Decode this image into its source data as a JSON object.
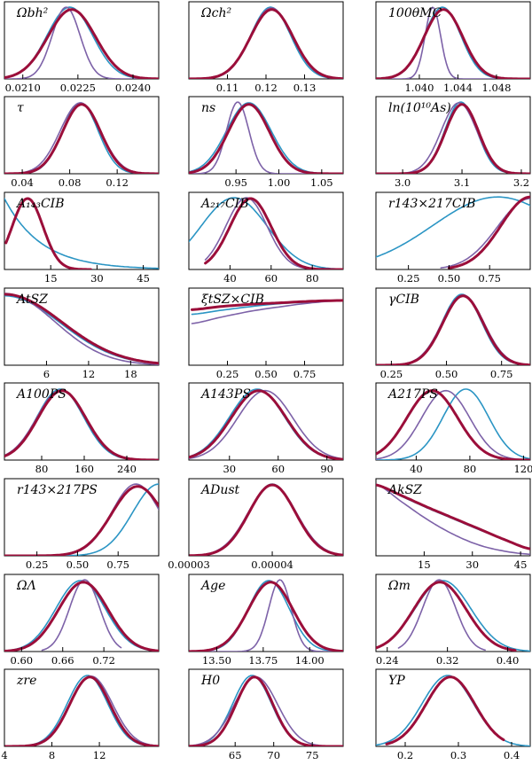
{
  "figure": "posterior-grid",
  "colors": {
    "thick": "#9b0e3a",
    "cyan": "#2b95c4",
    "purple": "#7d62a8"
  },
  "series_names": [
    "thick",
    "cyan",
    "purple"
  ],
  "chart_data": [
    {
      "type": "line",
      "title": "Ωbh²",
      "xlim": [
        0.0205,
        0.0247
      ],
      "ticks": [
        0.021,
        0.0225,
        0.024
      ],
      "tick_labels": [
        "0.0210",
        "0.0225",
        "0.0240"
      ],
      "series": [
        {
          "name": "thick",
          "kind": "gauss",
          "mu": 0.02233,
          "sigma": 0.00065,
          "peak": 0.9
        },
        {
          "name": "cyan",
          "kind": "gauss",
          "mu": 0.02228,
          "sigma": 0.00062,
          "peak": 0.93
        },
        {
          "name": "purple",
          "kind": "gauss",
          "mu": 0.02218,
          "sigma": 0.00038,
          "peak": 0.93
        }
      ]
    },
    {
      "type": "line",
      "title": "Ωch²",
      "xlim": [
        0.1,
        0.14
      ],
      "ticks": [
        0.11,
        0.12,
        0.13
      ],
      "tick_labels": [
        "0.11",
        "0.12",
        "0.13"
      ],
      "series": [
        {
          "name": "thick",
          "kind": "gauss",
          "mu": 0.1215,
          "sigma": 0.0055,
          "peak": 0.9
        },
        {
          "name": "cyan",
          "kind": "gauss",
          "mu": 0.1212,
          "sigma": 0.0052,
          "peak": 0.93
        },
        {
          "name": "purple",
          "kind": "gauss",
          "mu": 0.1214,
          "sigma": 0.0054,
          "peak": 0.92
        }
      ]
    },
    {
      "type": "line",
      "title": "100θMC",
      "xlim": [
        1.0355,
        1.0515
      ],
      "ticks": [
        1.04,
        1.044,
        1.048
      ],
      "tick_labels": [
        "1.040",
        "1.044",
        "1.048"
      ],
      "series": [
        {
          "name": "thick",
          "kind": "gauss",
          "mu": 1.0425,
          "sigma": 0.002,
          "peak": 0.9
        },
        {
          "name": "cyan",
          "kind": "gauss",
          "mu": 1.0424,
          "sigma": 0.0019,
          "peak": 0.93
        },
        {
          "name": "purple",
          "kind": "gauss",
          "mu": 1.0414,
          "sigma": 0.0008,
          "peak": 0.93
        }
      ]
    },
    {
      "type": "line",
      "title": "τ",
      "xlim": [
        0.025,
        0.155
      ],
      "ticks": [
        0.04,
        0.08,
        0.12
      ],
      "tick_labels": [
        "0.04",
        "0.08",
        "0.12"
      ],
      "series": [
        {
          "name": "thick",
          "kind": "gauss",
          "mu": 0.09,
          "sigma": 0.016,
          "peak": 0.9
        },
        {
          "name": "cyan",
          "kind": "gauss",
          "mu": 0.089,
          "sigma": 0.015,
          "peak": 0.92
        },
        {
          "name": "purple",
          "kind": "gauss",
          "mu": 0.089,
          "sigma": 0.017,
          "peak": 0.92
        }
      ]
    },
    {
      "type": "line",
      "title": "ns",
      "xlim": [
        0.895,
        1.075
      ],
      "ticks": [
        0.95,
        1.0,
        1.05
      ],
      "tick_labels": [
        "0.95",
        "1.00",
        "1.05"
      ],
      "series": [
        {
          "name": "thick",
          "kind": "gauss",
          "mu": 0.965,
          "sigma": 0.024,
          "peak": 0.9
        },
        {
          "name": "cyan",
          "kind": "gauss",
          "mu": 0.965,
          "sigma": 0.026,
          "peak": 0.92
        },
        {
          "name": "purple",
          "kind": "gauss",
          "mu": 0.952,
          "sigma": 0.013,
          "peak": 0.93
        }
      ]
    },
    {
      "type": "line",
      "title": "ln(10¹⁰As)",
      "xlim": [
        2.955,
        3.215
      ],
      "ticks": [
        3.0,
        3.1,
        3.2
      ],
      "tick_labels": [
        "3.0",
        "3.1",
        "3.2"
      ],
      "series": [
        {
          "name": "thick",
          "kind": "gauss",
          "mu": 3.1,
          "sigma": 0.028,
          "peak": 0.9
        },
        {
          "name": "cyan",
          "kind": "gauss",
          "mu": 3.098,
          "sigma": 0.027,
          "peak": 0.93
        },
        {
          "name": "purple",
          "kind": "gauss",
          "mu": 3.095,
          "sigma": 0.03,
          "peak": 0.92
        }
      ]
    },
    {
      "type": "line",
      "title": "A₁₄₃CIB",
      "xlim": [
        0,
        50
      ],
      "ticks": [
        15,
        30,
        45
      ],
      "tick_labels": [
        "15",
        "30",
        "45"
      ],
      "series": [
        {
          "name": "thick",
          "kind": "gauss",
          "mu": 7.5,
          "sigma": 5.0,
          "peak": 0.92,
          "x0": 0.5,
          "x1": 28
        },
        {
          "name": "cyan",
          "kind": "decay",
          "x0": 0,
          "x1": 50,
          "a": 0.92,
          "scale": 12
        },
        {
          "name": "purple",
          "kind": "gauss",
          "mu": 7.5,
          "sigma": 5.0,
          "peak": 0.92,
          "x0": 0.5,
          "x1": 28
        }
      ]
    },
    {
      "type": "line",
      "title": "A₂₁₇CIB",
      "xlim": [
        20,
        95
      ],
      "ticks": [
        40,
        60,
        80
      ],
      "tick_labels": [
        "40",
        "60",
        "80"
      ],
      "series": [
        {
          "name": "thick",
          "kind": "gauss",
          "mu": 50,
          "sigma": 10,
          "peak": 0.92,
          "x0": 28,
          "x1": 95
        },
        {
          "name": "cyan",
          "kind": "gauss",
          "mu": 42,
          "sigma": 16,
          "peak": 0.93
        },
        {
          "name": "purple",
          "kind": "gauss",
          "mu": 48,
          "sigma": 10,
          "peak": 0.93,
          "x0": 28,
          "x1": 95
        }
      ]
    },
    {
      "type": "line",
      "title": "r143×217CIB",
      "xlim": [
        0.05,
        1.0
      ],
      "ticks": [
        0.25,
        0.5,
        0.75
      ],
      "tick_labels": [
        "0.25",
        "0.50",
        "0.75"
      ],
      "series": [
        {
          "name": "thick",
          "kind": "gauss",
          "mu": 1.0,
          "sigma": 0.18,
          "peak": 0.94,
          "x0": 0.5,
          "x1": 1.0
        },
        {
          "name": "cyan",
          "kind": "gauss",
          "mu": 0.8,
          "sigma": 0.4,
          "peak": 0.94,
          "x0": 0.05,
          "x1": 1.0
        },
        {
          "name": "purple",
          "kind": "gauss",
          "mu": 1.0,
          "sigma": 0.2,
          "peak": 0.92,
          "x0": 0.45,
          "x1": 1.0
        }
      ]
    },
    {
      "type": "line",
      "title": "AtSZ",
      "xlim": [
        0,
        22
      ],
      "ticks": [
        6,
        12,
        18
      ],
      "tick_labels": [
        "6",
        "12",
        "18"
      ],
      "series": [
        {
          "name": "thick",
          "kind": "gauss",
          "mu": 0,
          "sigma": 8.2,
          "peak": 0.92
        },
        {
          "name": "cyan",
          "kind": "gauss",
          "mu": 0,
          "sigma": 8.0,
          "peak": 0.9
        },
        {
          "name": "purple",
          "kind": "gauss",
          "mu": 0,
          "sigma": 7.2,
          "peak": 0.93
        }
      ]
    },
    {
      "type": "line",
      "title": "ξtSZ×CIB",
      "xlim": [
        0,
        1.0
      ],
      "ticks": [
        0.25,
        0.5,
        0.75
      ],
      "tick_labels": [
        "0.25",
        "0.50",
        "0.75"
      ],
      "series": [
        {
          "name": "thick",
          "kind": "pts",
          "x": [
            0.02,
            0.2,
            0.4,
            0.6,
            0.8,
            1.0
          ],
          "y": [
            0.72,
            0.76,
            0.79,
            0.81,
            0.83,
            0.84
          ]
        },
        {
          "name": "cyan",
          "kind": "pts",
          "x": [
            0.02,
            0.2,
            0.4,
            0.6,
            0.8,
            1.0
          ],
          "y": [
            0.66,
            0.71,
            0.76,
            0.8,
            0.82,
            0.84
          ]
        },
        {
          "name": "purple",
          "kind": "pts",
          "x": [
            0.02,
            0.2,
            0.4,
            0.6,
            0.8,
            1.0
          ],
          "y": [
            0.54,
            0.62,
            0.7,
            0.76,
            0.81,
            0.84
          ]
        }
      ]
    },
    {
      "type": "line",
      "title": "γCIB",
      "xlim": [
        0.18,
        0.88
      ],
      "ticks": [
        0.25,
        0.5,
        0.75
      ],
      "tick_labels": [
        "0.25",
        "0.50",
        "0.75"
      ],
      "series": [
        {
          "name": "thick",
          "kind": "gauss",
          "mu": 0.575,
          "sigma": 0.092,
          "peak": 0.9
        },
        {
          "name": "cyan",
          "kind": "gauss",
          "mu": 0.57,
          "sigma": 0.09,
          "peak": 0.92
        },
        {
          "name": "purple",
          "kind": "gauss",
          "mu": 0.575,
          "sigma": 0.095,
          "peak": 0.91
        }
      ]
    },
    {
      "type": "line",
      "title": "A100PS",
      "xlim": [
        10,
        300
      ],
      "ticks": [
        80,
        160,
        240
      ],
      "tick_labels": [
        "80",
        "160",
        "240"
      ],
      "series": [
        {
          "name": "thick",
          "kind": "gauss",
          "mu": 118,
          "sigma": 45,
          "peak": 0.9
        },
        {
          "name": "cyan",
          "kind": "gauss",
          "mu": 115,
          "sigma": 44,
          "peak": 0.92
        },
        {
          "name": "purple",
          "kind": "gauss",
          "mu": 117,
          "sigma": 46,
          "peak": 0.91
        }
      ]
    },
    {
      "type": "line",
      "title": "A143PS",
      "xlim": [
        5,
        100
      ],
      "ticks": [
        30,
        60,
        90
      ],
      "tick_labels": [
        "30",
        "60",
        "90"
      ],
      "series": [
        {
          "name": "thick",
          "kind": "gauss",
          "mu": 48,
          "sigma": 17,
          "peak": 0.9
        },
        {
          "name": "cyan",
          "kind": "gauss",
          "mu": 47,
          "sigma": 17,
          "peak": 0.92
        },
        {
          "name": "purple",
          "kind": "gauss",
          "mu": 52,
          "sigma": 17,
          "peak": 0.9
        }
      ]
    },
    {
      "type": "line",
      "title": "A217PS",
      "xlim": [
        10,
        125
      ],
      "ticks": [
        40,
        80,
        120
      ],
      "tick_labels": [
        "40",
        "80",
        "120"
      ],
      "series": [
        {
          "name": "thick",
          "kind": "gauss",
          "mu": 52,
          "sigma": 19,
          "peak": 0.9
        },
        {
          "name": "cyan",
          "kind": "gauss",
          "mu": 77,
          "sigma": 17,
          "peak": 0.92
        },
        {
          "name": "purple",
          "kind": "gauss",
          "mu": 62,
          "sigma": 18,
          "peak": 0.9
        }
      ]
    },
    {
      "type": "line",
      "title": "r143×217PS",
      "xlim": [
        0.05,
        1.0
      ],
      "ticks": [
        0.25,
        0.5,
        0.75
      ],
      "tick_labels": [
        "0.25",
        "0.50",
        "0.75"
      ],
      "series": [
        {
          "name": "thick",
          "kind": "gauss",
          "mu": 0.87,
          "sigma": 0.16,
          "peak": 0.9
        },
        {
          "name": "cyan",
          "kind": "gauss",
          "mu": 1.0,
          "sigma": 0.16,
          "peak": 0.93
        },
        {
          "name": "purple",
          "kind": "gauss",
          "mu": 0.86,
          "sigma": 0.15,
          "peak": 0.93
        }
      ]
    },
    {
      "type": "line",
      "title": "ADust",
      "xlim": [
        3e-05,
        4.85e-05
      ],
      "ticks": [
        3e-05,
        4e-05
      ],
      "tick_labels": [
        "0.00003",
        "0.00004"
      ],
      "series": [
        {
          "name": "thick",
          "kind": "gauss",
          "mu": 4e-05,
          "sigma": 2.8e-06,
          "peak": 0.92
        },
        {
          "name": "cyan",
          "kind": "gauss",
          "mu": 4e-05,
          "sigma": 2.8e-06,
          "peak": 0.93
        },
        {
          "name": "purple",
          "kind": "gauss",
          "mu": 4e-05,
          "sigma": 2.9e-06,
          "peak": 0.92
        }
      ]
    },
    {
      "type": "line",
      "title": "AkSZ",
      "xlim": [
        0,
        48
      ],
      "ticks": [
        15,
        30,
        45
      ],
      "tick_labels": [
        "15",
        "30",
        "45"
      ],
      "series": [
        {
          "name": "thick",
          "kind": "pts",
          "x": [
            0,
            8,
            16,
            24,
            32,
            40,
            48
          ],
          "y": [
            0.92,
            0.78,
            0.63,
            0.49,
            0.35,
            0.21,
            0.09
          ]
        },
        {
          "name": "cyan",
          "kind": "pts",
          "x": [
            0,
            8,
            16,
            24,
            32,
            40,
            48
          ],
          "y": [
            0.92,
            0.77,
            0.62,
            0.48,
            0.34,
            0.21,
            0.09
          ]
        },
        {
          "name": "purple",
          "kind": "pts",
          "x": [
            0,
            8,
            16,
            24,
            32,
            40,
            48
          ],
          "y": [
            0.93,
            0.7,
            0.47,
            0.28,
            0.14,
            0.06,
            0.02
          ]
        }
      ]
    },
    {
      "type": "line",
      "title": "ΩΛ",
      "xlim": [
        0.575,
        0.8
      ],
      "ticks": [
        0.6,
        0.66,
        0.72
      ],
      "tick_labels": [
        "0.60",
        "0.66",
        "0.72"
      ],
      "series": [
        {
          "name": "thick",
          "kind": "gauss",
          "mu": 0.69,
          "sigma": 0.036,
          "peak": 0.9
        },
        {
          "name": "cyan",
          "kind": "gauss",
          "mu": 0.686,
          "sigma": 0.036,
          "peak": 0.92
        },
        {
          "name": "purple",
          "kind": "gauss",
          "mu": 0.692,
          "sigma": 0.022,
          "peak": 0.93,
          "x0": 0.63,
          "x1": 0.745
        }
      ]
    },
    {
      "type": "line",
      "title": "Age",
      "xlim": [
        13.35,
        14.18
      ],
      "ticks": [
        13.5,
        13.75,
        14.0
      ],
      "tick_labels": [
        "13.50",
        "13.75",
        "14.00"
      ],
      "series": [
        {
          "name": "thick",
          "kind": "gauss",
          "mu": 13.79,
          "sigma": 0.12,
          "peak": 0.9
        },
        {
          "name": "cyan",
          "kind": "gauss",
          "mu": 13.78,
          "sigma": 0.11,
          "peak": 0.92
        },
        {
          "name": "purple",
          "kind": "gauss",
          "mu": 13.84,
          "sigma": 0.06,
          "peak": 0.93
        }
      ]
    },
    {
      "type": "line",
      "title": "Ωm",
      "xlim": [
        0.225,
        0.43
      ],
      "ticks": [
        0.24,
        0.32,
        0.4
      ],
      "tick_labels": [
        "0.24",
        "0.32",
        "0.40"
      ],
      "series": [
        {
          "name": "thick",
          "kind": "gauss",
          "mu": 0.31,
          "sigma": 0.035,
          "peak": 0.9,
          "x0": 0.225,
          "x1": 0.41
        },
        {
          "name": "cyan",
          "kind": "gauss",
          "mu": 0.314,
          "sigma": 0.037,
          "peak": 0.92
        },
        {
          "name": "purple",
          "kind": "gauss",
          "mu": 0.309,
          "sigma": 0.022,
          "peak": 0.93,
          "x0": 0.255,
          "x1": 0.37
        }
      ]
    },
    {
      "type": "line",
      "title": "zre",
      "xlim": [
        4,
        17
      ],
      "ticks": [
        4,
        8,
        12
      ],
      "tick_labels": [
        "4",
        "8",
        "12"
      ],
      "series": [
        {
          "name": "thick",
          "kind": "gauss",
          "mu": 11.2,
          "sigma": 1.7,
          "peak": 0.9
        },
        {
          "name": "cyan",
          "kind": "gauss",
          "mu": 11.0,
          "sigma": 1.7,
          "peak": 0.92
        },
        {
          "name": "purple",
          "kind": "gauss",
          "mu": 11.3,
          "sigma": 1.8,
          "peak": 0.91
        }
      ]
    },
    {
      "type": "line",
      "title": "H0",
      "xlim": [
        59,
        79
      ],
      "ticks": [
        65,
        70,
        75
      ],
      "tick_labels": [
        "65",
        "70",
        "75"
      ],
      "series": [
        {
          "name": "thick",
          "kind": "gauss",
          "mu": 67.5,
          "sigma": 2.4,
          "peak": 0.9
        },
        {
          "name": "cyan",
          "kind": "gauss",
          "mu": 67.2,
          "sigma": 2.5,
          "peak": 0.92
        },
        {
          "name": "purple",
          "kind": "gauss",
          "mu": 67.7,
          "sigma": 2.8,
          "peak": 0.9
        }
      ]
    },
    {
      "type": "line",
      "title": "YP",
      "xlim": [
        0.145,
        0.435
      ],
      "ticks": [
        0.2,
        0.3,
        0.4
      ],
      "tick_labels": [
        "0.2",
        "0.3",
        "0.4"
      ],
      "series": [
        {
          "name": "thick",
          "kind": "gauss",
          "mu": 0.285,
          "sigma": 0.046,
          "peak": 0.9,
          "x0": 0.165,
          "x1": 0.385
        },
        {
          "name": "cyan",
          "kind": "gauss",
          "mu": 0.28,
          "sigma": 0.048,
          "peak": 0.92
        }
      ]
    }
  ]
}
